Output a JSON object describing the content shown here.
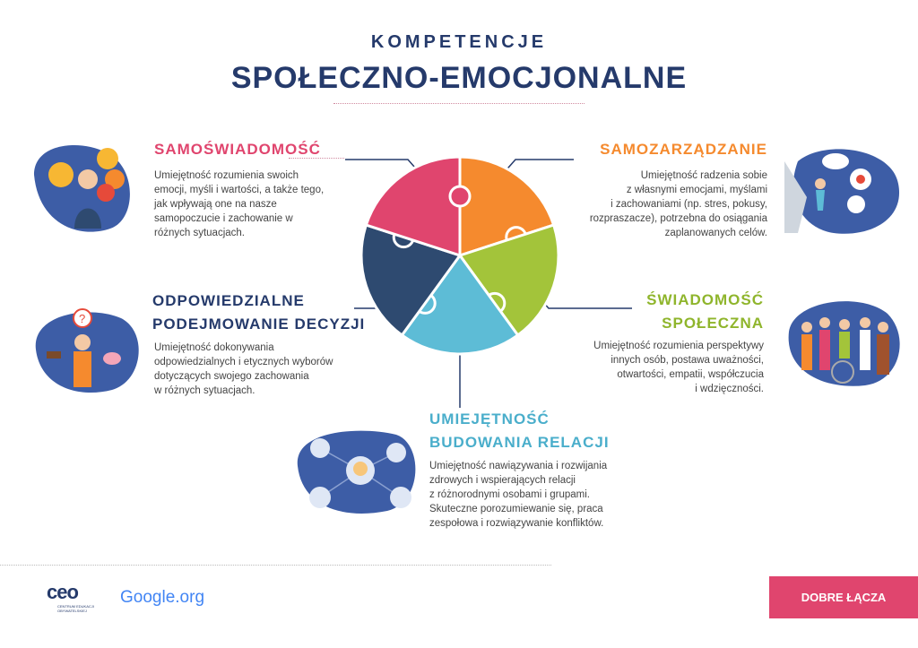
{
  "header": {
    "title_top": "KOMPETENCJE",
    "title_main": "SPOŁECZNO-EMOCJONALNE"
  },
  "colors": {
    "navy": "#253a6b",
    "pink": "#e0456e",
    "orange": "#f58a2e",
    "green": "#a3c43a",
    "light_blue": "#5dbcd6",
    "dark_blue": "#2e4a70",
    "blob": "#3d5da6"
  },
  "competencies": [
    {
      "title": "SAMOŚWIADOMOŚĆ",
      "lines": [
        "Umiejętność rozumienia swoich",
        "emocji, myśli i wartości, a także tego,",
        "jak wpływają one na nasze",
        "samopoczucie i zachowanie w",
        "różnych sytuacjach."
      ]
    },
    {
      "title": "SAMOZARZĄDZANIE",
      "lines": [
        "Umiejętność radzenia sobie",
        "z własnymi emocjami, myślami",
        "i zachowaniami (np. stres, pokusy,",
        "rozpraszacze), potrzebna do osiągania",
        "zaplanowanych celów."
      ]
    },
    {
      "title1": "ŚWIADOMOŚĆ",
      "title2": "SPOŁECZNA",
      "lines": [
        "Umiejętność rozumienia perspektywy",
        "innych osób, postawa uważności,",
        "otwartości, empatii, współczucia",
        "i wdzięczności."
      ]
    },
    {
      "title1": "UMIEJĘTNOŚĆ",
      "title2": "BUDOWANIA RELACJI",
      "lines": [
        "Umiejętność nawiązywania i rozwijania",
        "zdrowych i wspierających relacji",
        "z różnorodnymi osobami i grupami.",
        "Skuteczne porozumiewanie się, praca",
        "zespołowa i rozwiązywanie konfliktów."
      ]
    },
    {
      "title1": "ODPOWIEDZIALNE",
      "title2": "PODEJMOWANIE DECYZJI",
      "lines": [
        "Umiejętność dokonywania",
        "odpowiedzialnych i etycznych wyborów",
        "dotyczących swojego zachowania",
        "w różnych sytuacjach."
      ]
    }
  ],
  "footer": {
    "ceo_logo": "ceo",
    "ceo_sub1": "CENTRUM EDUKACJI",
    "ceo_sub2": "OBYWATELSKIEJ",
    "google_logo": "Google.org",
    "button": "DOBRE ŁĄCZA"
  }
}
